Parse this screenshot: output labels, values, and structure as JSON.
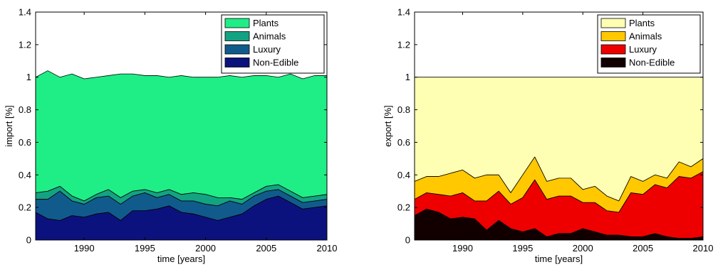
{
  "chart_data": [
    {
      "type": "area",
      "stacked": true,
      "xlabel": "time [years]",
      "ylabel": "import [%]",
      "xlim": [
        1986,
        2010
      ],
      "ylim": [
        0,
        1.4
      ],
      "xticks": [
        1990,
        1995,
        2000,
        2005,
        2010
      ],
      "xtick_labels": [
        "1990",
        "1995",
        "2000",
        "2005",
        "2010"
      ],
      "yticks": [
        0,
        0.2,
        0.4,
        0.6,
        0.8,
        1,
        1.2,
        1.4
      ],
      "ytick_labels": [
        "0",
        "0.2",
        "0.4",
        "0.6",
        "0.8",
        "1",
        "1.2",
        "1.4"
      ],
      "grid": false,
      "legend_position": "top-right",
      "x": [
        1986,
        1987,
        1988,
        1989,
        1990,
        1991,
        1992,
        1993,
        1994,
        1995,
        1996,
        1997,
        1998,
        1999,
        2000,
        2001,
        2002,
        2003,
        2004,
        2005,
        2006,
        2007,
        2008,
        2009,
        2010
      ],
      "series": [
        {
          "name": "Plants",
          "color": "#1fee86",
          "values": [
            0.71,
            0.74,
            0.67,
            0.75,
            0.75,
            0.72,
            0.7,
            0.76,
            0.72,
            0.7,
            0.72,
            0.69,
            0.73,
            0.71,
            0.72,
            0.74,
            0.75,
            0.75,
            0.72,
            0.68,
            0.66,
            0.72,
            0.73,
            0.74,
            0.73
          ]
        },
        {
          "name": "Animals",
          "color": "#13a382",
          "values": [
            0.04,
            0.05,
            0.03,
            0.03,
            0.02,
            0.02,
            0.04,
            0.04,
            0.03,
            0.02,
            0.03,
            0.03,
            0.04,
            0.05,
            0.06,
            0.05,
            0.02,
            0.03,
            0.02,
            0.03,
            0.03,
            0.03,
            0.03,
            0.03,
            0.03
          ]
        },
        {
          "name": "Luxury",
          "color": "#115b8c",
          "values": [
            0.08,
            0.12,
            0.18,
            0.09,
            0.08,
            0.1,
            0.1,
            0.1,
            0.09,
            0.11,
            0.07,
            0.07,
            0.07,
            0.08,
            0.08,
            0.09,
            0.1,
            0.06,
            0.06,
            0.05,
            0.04,
            0.04,
            0.04,
            0.04,
            0.04
          ]
        },
        {
          "name": "Non-Edible",
          "color": "#0c127d",
          "values": [
            0.17,
            0.13,
            0.12,
            0.15,
            0.14,
            0.16,
            0.17,
            0.12,
            0.18,
            0.18,
            0.19,
            0.21,
            0.17,
            0.16,
            0.14,
            0.12,
            0.14,
            0.16,
            0.21,
            0.25,
            0.27,
            0.23,
            0.19,
            0.2,
            0.21
          ]
        }
      ]
    },
    {
      "type": "area",
      "stacked": true,
      "xlabel": "time [years]",
      "ylabel": "export [%]",
      "xlim": [
        1986,
        2010
      ],
      "ylim": [
        0,
        1.4
      ],
      "xticks": [
        1990,
        1995,
        2000,
        2005,
        2010
      ],
      "xtick_labels": [
        "1990",
        "1995",
        "2000",
        "2005",
        "2010"
      ],
      "yticks": [
        0,
        0.2,
        0.4,
        0.6,
        0.8,
        1,
        1.2,
        1.4
      ],
      "ytick_labels": [
        "0",
        "0.2",
        "0.4",
        "0.6",
        "0.8",
        "1",
        "1.2",
        "1.4"
      ],
      "grid": false,
      "legend_position": "top-right",
      "x": [
        1986,
        1987,
        1988,
        1989,
        1990,
        1991,
        1992,
        1993,
        1994,
        1995,
        1996,
        1997,
        1998,
        1999,
        2000,
        2001,
        2002,
        2003,
        2004,
        2005,
        2006,
        2007,
        2008,
        2009,
        2010
      ],
      "series": [
        {
          "name": "Plants",
          "color": "#ffffb3",
          "values": [
            0.64,
            0.61,
            0.61,
            0.59,
            0.57,
            0.62,
            0.6,
            0.6,
            0.71,
            0.6,
            0.49,
            0.64,
            0.62,
            0.62,
            0.69,
            0.67,
            0.73,
            0.76,
            0.61,
            0.64,
            0.6,
            0.62,
            0.52,
            0.55,
            0.5
          ]
        },
        {
          "name": "Animals",
          "color": "#ffc800",
          "values": [
            0.11,
            0.1,
            0.11,
            0.14,
            0.14,
            0.14,
            0.16,
            0.1,
            0.07,
            0.14,
            0.14,
            0.11,
            0.11,
            0.11,
            0.08,
            0.1,
            0.09,
            0.07,
            0.1,
            0.08,
            0.06,
            0.06,
            0.09,
            0.07,
            0.08
          ]
        },
        {
          "name": "Luxury",
          "color": "#ee0000",
          "values": [
            0.1,
            0.1,
            0.11,
            0.14,
            0.15,
            0.11,
            0.18,
            0.18,
            0.15,
            0.21,
            0.3,
            0.23,
            0.23,
            0.23,
            0.16,
            0.18,
            0.15,
            0.14,
            0.27,
            0.26,
            0.3,
            0.3,
            0.38,
            0.37,
            0.4
          ]
        },
        {
          "name": "Non-Edible",
          "color": "#120000",
          "values": [
            0.15,
            0.19,
            0.17,
            0.13,
            0.14,
            0.13,
            0.06,
            0.12,
            0.07,
            0.05,
            0.07,
            0.02,
            0.04,
            0.04,
            0.07,
            0.05,
            0.03,
            0.03,
            0.02,
            0.02,
            0.04,
            0.02,
            0.01,
            0.01,
            0.02
          ]
        }
      ]
    }
  ]
}
